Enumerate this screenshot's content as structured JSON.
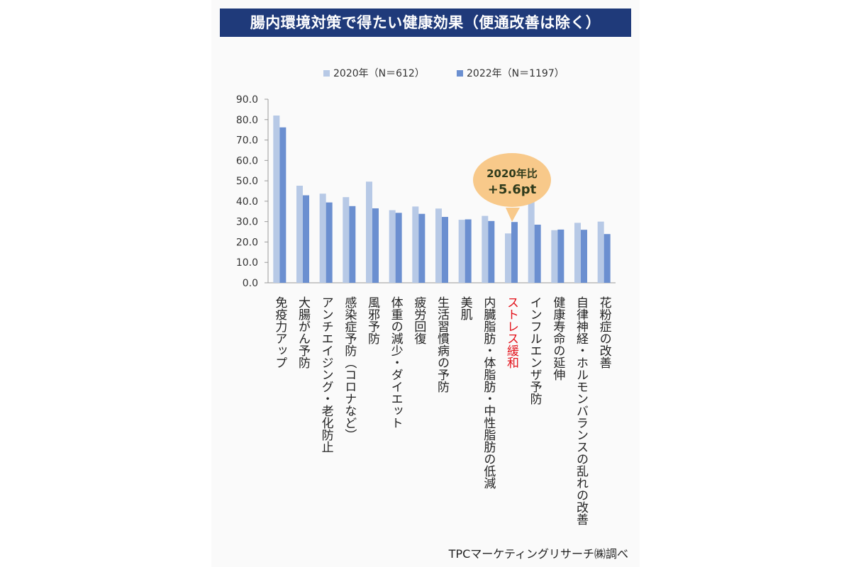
{
  "title": "腸内環境対策で得たい健康効果（便通改善は除く）",
  "footer": "TPCマーケティングリサーチ㈱調べ",
  "callout": {
    "line1": "2020年比",
    "line2": "+5.6pt",
    "color": "#f8c98a"
  },
  "colors": {
    "series_2020": "#b7c9e6",
    "series_2022": "#6b8fd0",
    "highlight_label": "#e3121b",
    "title_bg": "#1f3a7a"
  },
  "chart_data": {
    "type": "bar",
    "categories": [
      "免疫力アップ",
      "大腸がん予防",
      "アンチエイジング・老化防止",
      "感染症予防（コロナなど）",
      "風邪予防",
      "体重の減少・ダイエット",
      "疲労回復",
      "生活習慣病の予防",
      "美肌",
      "内臓脂肪・体脂肪・中性脂肪の低減",
      "ストレス緩和",
      "インフルエンザ予防",
      "健康寿命の延伸",
      "自律神経・ホルモンバランスの乱れの改善",
      "花粉症の改善"
    ],
    "highlight_category": "ストレス緩和",
    "series": [
      {
        "name": "2020年（N＝612）",
        "values": [
          82.0,
          47.6,
          43.7,
          42.0,
          49.6,
          35.6,
          37.4,
          36.4,
          30.9,
          32.8,
          24.2,
          44.7,
          25.8,
          29.4,
          30.0
        ]
      },
      {
        "name": "2022年（N＝1197）",
        "values": [
          76.2,
          42.9,
          39.4,
          37.6,
          36.5,
          34.3,
          33.8,
          32.3,
          31.1,
          30.3,
          29.8,
          28.5,
          26.1,
          26.0,
          23.9
        ]
      }
    ],
    "ylim": [
      0,
      90
    ],
    "yticks": [
      "0.0",
      "10.0",
      "20.0",
      "30.0",
      "40.0",
      "50.0",
      "60.0",
      "70.0",
      "80.0",
      "90.0"
    ],
    "legend_position": "top",
    "grid": false
  }
}
